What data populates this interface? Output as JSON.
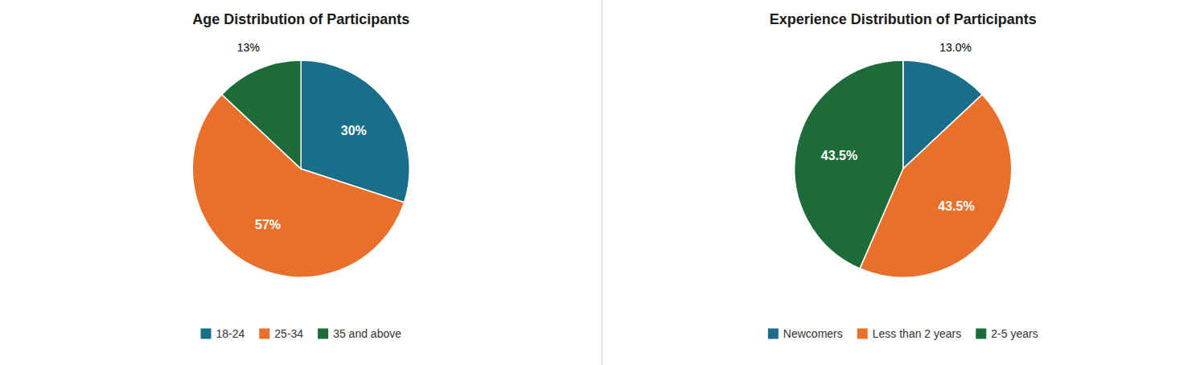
{
  "chart_data": [
    {
      "type": "pie",
      "title": "Age Distribution of Participants",
      "categories": [
        "18-24",
        "25-34",
        "35 and above"
      ],
      "values": [
        30,
        57,
        13
      ],
      "value_labels": [
        "30%",
        "57%",
        "13%"
      ],
      "colors": [
        "#1a6e8a",
        "#e8702a",
        "#1e6b3a"
      ],
      "data_labels": true,
      "legend": "bottom"
    },
    {
      "type": "pie",
      "title": "Experience Distribution of Participants",
      "categories": [
        "Newcomers",
        "Less than 2 years",
        "2-5 years"
      ],
      "values": [
        13.0,
        43.5,
        43.5
      ],
      "value_labels": [
        "13.0%",
        "43.5%",
        "43.5%"
      ],
      "colors": [
        "#1a6e8a",
        "#e8702a",
        "#1e6b3a"
      ],
      "data_labels": true,
      "legend": "bottom"
    }
  ]
}
